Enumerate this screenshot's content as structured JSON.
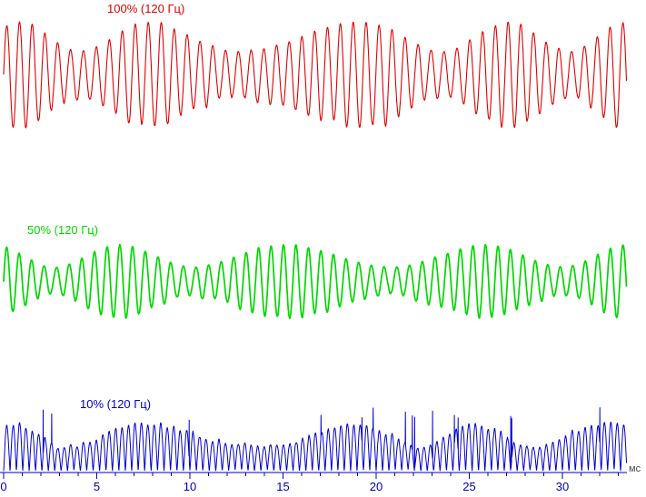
{
  "chart_data": {
    "type": "line",
    "title": "",
    "description": "Three oscillogram traces of 120 Hz ripple waveforms at different ripple depths, plotted against time in milliseconds",
    "x_axis": {
      "unit": "мс",
      "range_ms": [
        0,
        33.5
      ],
      "major_ticks": [
        0,
        5,
        10,
        15,
        20,
        25,
        30
      ],
      "minor_tick_step_ms": 1,
      "axis_color": "#0000bb",
      "tick_label_color": "#0000bb",
      "unit_label_color": "#444444"
    },
    "grid": "off",
    "legend_position": "inline-above-each-trace",
    "series": [
      {
        "label": "100% (120 Гц)",
        "ripple_depth_percent": 100,
        "ripple_frequency_hz": 120,
        "color": "#e00000"
      },
      {
        "label": "50% (120 Гц)",
        "ripple_depth_percent": 50,
        "ripple_frequency_hz": 120,
        "color": "#00d800"
      },
      {
        "label": "10% (120 Гц)",
        "ripple_depth_percent": 10,
        "ripple_frequency_hz": 120,
        "color": "#0000cc"
      }
    ]
  }
}
